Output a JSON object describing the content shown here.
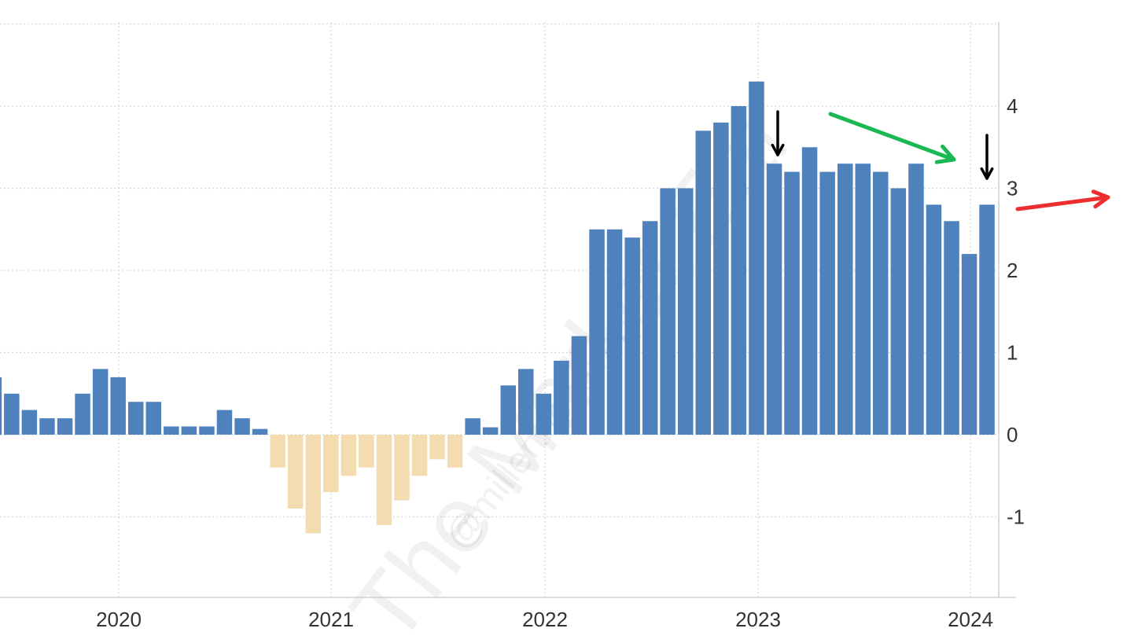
{
  "chart_data": {
    "type": "bar",
    "title": "",
    "xlabel": "",
    "ylabel": "",
    "ylim": [
      -2,
      5
    ],
    "y_ticks": [
      -1,
      0,
      1,
      2,
      3,
      4
    ],
    "x_ticks": [
      "2020",
      "2021",
      "2022",
      "2023",
      "2024"
    ],
    "grid": true,
    "positive_color": "#4f81bd",
    "negative_color": "#f3dcb0",
    "values": [
      0.7,
      0.5,
      0.3,
      0.2,
      0.2,
      0.5,
      0.8,
      0.7,
      0.4,
      0.4,
      0.1,
      0.1,
      0.1,
      0.3,
      0.2,
      0.07,
      -0.4,
      -0.9,
      -1.2,
      -0.7,
      -0.5,
      -0.4,
      -1.1,
      -0.8,
      -0.5,
      -0.3,
      -0.4,
      0.2,
      0.09,
      0.6,
      0.8,
      0.5,
      0.9,
      1.2,
      2.5,
      2.5,
      2.4,
      2.6,
      3.0,
      3.0,
      3.7,
      3.8,
      4.0,
      4.3,
      3.3,
      3.2,
      3.5,
      3.2,
      3.3,
      3.3,
      3.2,
      3.0,
      3.3,
      2.8,
      2.6,
      2.2,
      2.8
    ]
  },
  "watermark": {
    "line1": "The Market Ear",
    "line2": "@millerthehaven"
  },
  "annotations": {
    "down_arrow_color": "#000000",
    "trend_arrow_color": "#1ab852",
    "forward_arrow_color": "#ee2e2e"
  }
}
